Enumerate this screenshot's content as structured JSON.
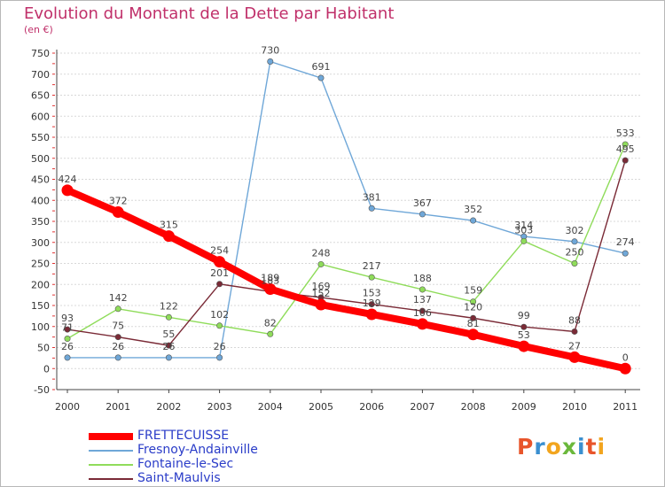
{
  "title": "Evolution du Montant de la Dette par Habitant",
  "subtitle": "(en €)",
  "logo": {
    "text": "Proxiti",
    "colors": [
      "#e8552b",
      "#3a8fd0",
      "#f2a51e",
      "#6bb83b",
      "#3a8fd0",
      "#e8552b",
      "#f2a51e"
    ]
  },
  "chart_data": {
    "type": "line",
    "x": [
      "2000",
      "2001",
      "2002",
      "2003",
      "2004",
      "2005",
      "2006",
      "2007",
      "2008",
      "2009",
      "2010",
      "2011"
    ],
    "yticks": [
      "-50",
      "0",
      "50",
      "100",
      "150",
      "200",
      "250",
      "300",
      "350",
      "400",
      "450",
      "500",
      "550",
      "600",
      "650",
      "700",
      "750"
    ],
    "ylim": [
      -50,
      750
    ],
    "grid": "horizontal dotted",
    "legend": "bottom-left",
    "series": [
      {
        "name": "FRETTECUISSE",
        "color": "#ff0000",
        "highlight": true,
        "values": [
          424,
          372,
          315,
          254,
          189,
          152,
          129,
          106,
          81,
          53,
          27,
          0
        ],
        "labels": [
          "424",
          "372",
          "315",
          "254",
          "189",
          "152",
          "129",
          "106",
          "81",
          "53",
          "27",
          "0"
        ]
      },
      {
        "name": "Fresnoy-Andainville",
        "color": "#6fa7d8",
        "values": [
          26,
          26,
          26,
          26,
          730,
          691,
          381,
          367,
          352,
          314,
          302,
          274
        ],
        "labels": [
          "26",
          "26",
          "26",
          "26",
          "730",
          "691",
          "381",
          "367",
          "352",
          "314",
          "302",
          "274"
        ]
      },
      {
        "name": "Fontaine-le-Sec",
        "color": "#8fdc5a",
        "values": [
          71,
          142,
          122,
          102,
          82,
          248,
          217,
          188,
          159,
          303,
          250,
          533
        ],
        "labels": [
          "71",
          "142",
          "122",
          "102",
          "82",
          "248",
          "217",
          "188",
          "159",
          "303",
          "250",
          "533"
        ]
      },
      {
        "name": "Saint-Maulvis",
        "color": "#7a2a36",
        "values": [
          93,
          75,
          55,
          201,
          183,
          169,
          153,
          137,
          120,
          99,
          88,
          495
        ],
        "labels": [
          "93",
          "75",
          "55",
          "201",
          "183",
          "169",
          "153",
          "137",
          "120",
          "99",
          "88",
          "495"
        ]
      }
    ]
  }
}
